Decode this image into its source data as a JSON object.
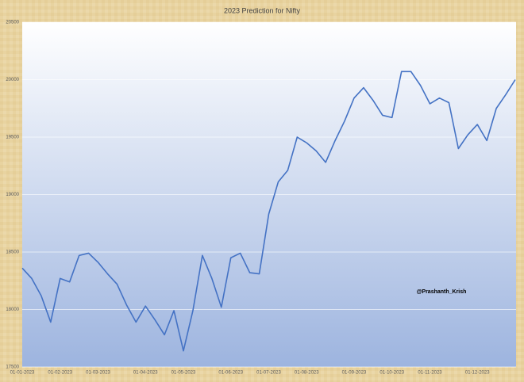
{
  "chart_data": {
    "type": "line",
    "title": "2023 Prediction for Nifty",
    "annotation": "@Prashanth_Krish",
    "categories": [
      "01-01-2023",
      null,
      null,
      null,
      "01-02-2023",
      null,
      null,
      null,
      "01-03-2023",
      null,
      null,
      null,
      null,
      "01-04-2023",
      null,
      null,
      null,
      "01-05-2023",
      null,
      null,
      null,
      null,
      "01-06-2023",
      null,
      null,
      null,
      "01-07-2023",
      null,
      null,
      null,
      "01-08-2023",
      null,
      null,
      null,
      null,
      "01-09-2023",
      null,
      null,
      null,
      "01-10-2023",
      null,
      null,
      null,
      "01-11-2023",
      null,
      null,
      null,
      null,
      "01-12-2023",
      null,
      null,
      null,
      null
    ],
    "values": [
      18360,
      18270,
      18120,
      17890,
      18270,
      18240,
      18470,
      18490,
      18410,
      18310,
      18220,
      18040,
      17890,
      18030,
      17910,
      17780,
      17990,
      17640,
      17990,
      18470,
      18270,
      18020,
      18450,
      18490,
      18320,
      18310,
      18830,
      19110,
      19210,
      19500,
      19450,
      19380,
      19280,
      19470,
      19640,
      19840,
      19930,
      19820,
      19690,
      19670,
      20070,
      20070,
      19950,
      19790,
      19840,
      19800,
      19400,
      19520,
      19610,
      19470,
      19750,
      19870,
      20000
    ],
    "color": "#4472c4",
    "ylim": [
      17500,
      20500
    ],
    "yticks": [
      17500,
      18000,
      18500,
      19000,
      19500,
      20000,
      20500
    ],
    "grid": true
  }
}
